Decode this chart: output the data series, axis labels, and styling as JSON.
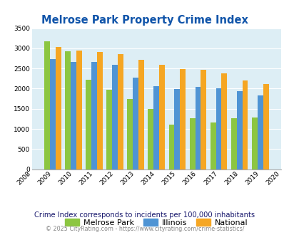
{
  "title": "Melrose Park Property Crime Index",
  "years": [
    2009,
    2010,
    2011,
    2012,
    2013,
    2014,
    2015,
    2016,
    2017,
    2018,
    2019
  ],
  "melrose_park": [
    3175,
    2930,
    2215,
    1970,
    1745,
    1500,
    1105,
    1265,
    1155,
    1260,
    1285
  ],
  "illinois": [
    2730,
    2660,
    2660,
    2590,
    2280,
    2065,
    1990,
    2050,
    2005,
    1935,
    1840
  ],
  "national": [
    3030,
    2945,
    2905,
    2860,
    2720,
    2590,
    2490,
    2465,
    2380,
    2205,
    2110
  ],
  "color_melrose": "#8cc641",
  "color_illinois": "#4f94d4",
  "color_national": "#f5a623",
  "ylim": [
    0,
    3500
  ],
  "yticks": [
    0,
    500,
    1000,
    1500,
    2000,
    2500,
    3000,
    3500
  ],
  "xlim": [
    2008,
    2020
  ],
  "background_color": "#ddeef5",
  "subtitle": "Crime Index corresponds to incidents per 100,000 inhabitants",
  "footer": "© 2025 CityRating.com - https://www.cityrating.com/crime-statistics/",
  "title_color": "#1155aa",
  "subtitle_color": "#1a1a6e",
  "footer_color": "#888888",
  "footer_link_color": "#4477cc"
}
